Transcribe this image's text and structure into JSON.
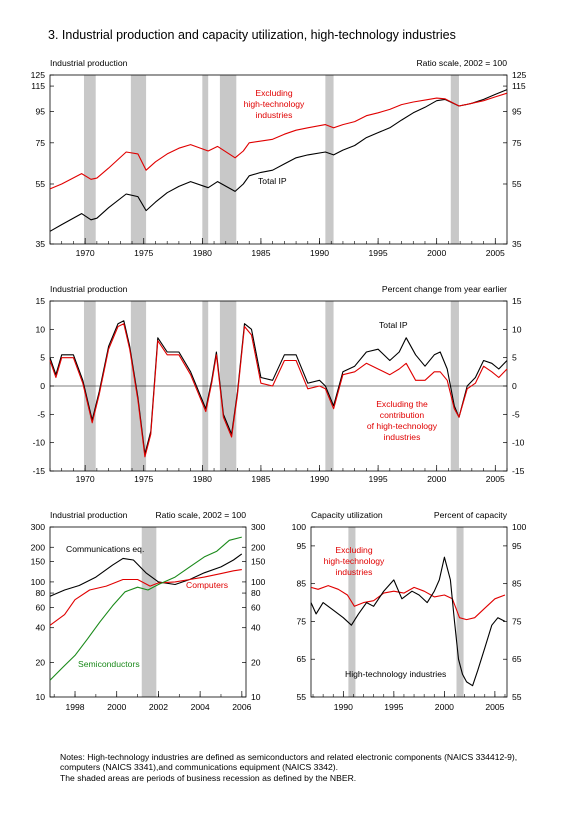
{
  "title": "3.  Industrial production and capacity utilization, high-technology industries",
  "colors": {
    "ip": "#000000",
    "red": "#e00000",
    "green": "#1a8a1a",
    "shade": "#c8c8c8"
  },
  "recessions": [
    [
      1969.9,
      1970.9
    ],
    [
      1973.9,
      1975.2
    ],
    [
      1980.0,
      1980.5
    ],
    [
      1981.5,
      1982.9
    ],
    [
      1990.5,
      1991.2
    ],
    [
      2001.2,
      2001.9
    ]
  ],
  "notes": {
    "line1": "Notes:  High-technology industries are defined as semiconductors and related electronic components (NAICS 334412-9),",
    "line2": "computers (NAICS 3341),and communications equipment (NAICS 3342).",
    "line3": "The shaded areas are periods of business recession as defined by the NBER."
  },
  "chart_data": [
    {
      "type": "line",
      "left_label": "Industrial production",
      "right_label": "Ratio scale, 2002 = 100",
      "scale": "log",
      "xlim": [
        1967,
        2006
      ],
      "ylim": [
        35,
        125
      ],
      "x_ticks": [
        "1970",
        "1975",
        "1980",
        "1985",
        "1990",
        "1995",
        "2000",
        "2005"
      ],
      "y_ticks": [
        "35",
        "55",
        "75",
        "95",
        "115",
        "125"
      ],
      "annotations": {
        "excl_1": "Excluding",
        "excl_2": "high-technology",
        "excl_3": "industries",
        "total": "Total IP"
      },
      "series": [
        {
          "name": "Total IP",
          "color": "ip",
          "x": [
            1967,
            1968,
            1969.7,
            1970.5,
            1971,
            1972,
            1973.5,
            1974.5,
            1975.2,
            1976,
            1977,
            1978,
            1979,
            1980.5,
            1981.3,
            1982.8,
            1983.5,
            1984,
            1985,
            1986,
            1987,
            1988,
            1989,
            1990.5,
            1991.2,
            1992,
            1993,
            1994,
            1995,
            1996,
            1997,
            1998,
            1999,
            2000,
            2000.7,
            2001.9,
            2002.5,
            2003,
            2004,
            2005,
            2006
          ],
          "y": [
            38.5,
            40.5,
            44,
            42,
            42.5,
            46,
            51,
            50,
            45,
            48,
            51.5,
            54,
            56,
            53.5,
            56,
            52,
            55,
            58.5,
            60,
            61,
            64,
            67,
            68.5,
            70,
            68.5,
            71,
            73.5,
            78,
            81,
            84,
            89,
            94,
            98,
            103,
            104,
            99,
            100,
            101,
            104,
            108,
            112
          ]
        },
        {
          "name": "Excluding high-technology industries",
          "color": "red",
          "x": [
            1967,
            1968,
            1969.7,
            1970.5,
            1971,
            1972,
            1973.5,
            1974.5,
            1975.2,
            1976,
            1977,
            1978,
            1979,
            1980.5,
            1981.3,
            1982.8,
            1983.5,
            1984,
            1985,
            1986,
            1987,
            1988,
            1989,
            1990.5,
            1991.2,
            1992,
            1993,
            1994,
            1995,
            1996,
            1997,
            1998,
            1999,
            2000,
            2000.7,
            2001.9,
            2002.5,
            2003,
            2004,
            2005,
            2006
          ],
          "y": [
            53,
            55,
            59.5,
            57,
            57.5,
            62,
            70,
            69,
            61,
            65,
            69,
            72,
            74,
            70.5,
            73,
            67,
            70.5,
            75,
            76,
            77,
            80,
            82.5,
            84,
            86,
            84,
            86,
            88,
            92,
            94,
            96.5,
            100,
            102,
            103.5,
            105,
            104.5,
            99,
            100,
            101,
            103,
            106,
            109
          ]
        }
      ]
    },
    {
      "type": "line",
      "left_label": "Industrial production",
      "right_label": "Percent change from year earlier",
      "xlim": [
        1967,
        2006
      ],
      "ylim": [
        -15,
        15
      ],
      "x_ticks": [
        "1970",
        "1975",
        "1980",
        "1985",
        "1990",
        "1995",
        "2000",
        "2005"
      ],
      "y_ticks": [
        "-15",
        "-10",
        "-5",
        "0",
        "5",
        "10",
        "15"
      ],
      "annotations": {
        "total": "Total IP",
        "excl_1": "Excluding the",
        "excl_2": "contribution",
        "excl_3": "of high-technology",
        "excl_4": "industries"
      },
      "series": [
        {
          "name": "Total IP",
          "color": "ip",
          "x": [
            1967,
            1967.5,
            1968,
            1969,
            1969.8,
            1970.6,
            1971.2,
            1972,
            1972.8,
            1973.3,
            1973.8,
            1974.5,
            1975.1,
            1975.6,
            1976.2,
            1977,
            1978,
            1979,
            1979.6,
            1980.3,
            1980.8,
            1981.2,
            1981.8,
            1982.5,
            1983,
            1983.6,
            1984.2,
            1985,
            1986,
            1987,
            1988,
            1989,
            1990,
            1990.5,
            1991.2,
            1992,
            1993,
            1994,
            1995,
            1996,
            1996.8,
            1997.4,
            1998.2,
            1999,
            1999.8,
            2000.3,
            2000.9,
            2001.5,
            2001.9,
            2002.6,
            2003.3,
            2004,
            2004.7,
            2005.3,
            2006
          ],
          "y": [
            5,
            2,
            5.5,
            5.5,
            1,
            -6,
            -1,
            7,
            11,
            11.5,
            7,
            -2,
            -12,
            -8,
            8.5,
            6,
            6,
            2.5,
            -0.5,
            -4,
            1,
            6,
            -5,
            -8.5,
            -1,
            11,
            10,
            1.5,
            1,
            5.5,
            5.5,
            0.5,
            1,
            0,
            -3.5,
            2.5,
            3.5,
            6,
            6.5,
            4.5,
            6,
            8.5,
            5.5,
            3.5,
            5.5,
            6,
            3,
            -3.5,
            -5.5,
            0,
            1.5,
            4.5,
            4,
            3,
            4.5
          ]
        },
        {
          "name": "Excluding the contribution of high-technology industries",
          "color": "red",
          "x": [
            1967,
            1967.5,
            1968,
            1969,
            1969.8,
            1970.6,
            1971.2,
            1972,
            1972.8,
            1973.3,
            1973.8,
            1974.5,
            1975.1,
            1975.6,
            1976.2,
            1977,
            1978,
            1979,
            1979.6,
            1980.3,
            1980.8,
            1981.2,
            1981.8,
            1982.5,
            1983,
            1983.6,
            1984.2,
            1985,
            1986,
            1987,
            1988,
            1989,
            1990,
            1990.5,
            1991.2,
            1992,
            1993,
            1994,
            1995,
            1996,
            1996.8,
            1997.4,
            1998.2,
            1999,
            1999.8,
            2000.3,
            2000.9,
            2001.5,
            2001.9,
            2002.6,
            2003.3,
            2004,
            2004.7,
            2005.3,
            2006
          ],
          "y": [
            4.5,
            1.5,
            5,
            5,
            0.5,
            -6.5,
            -1.5,
            6.5,
            10.5,
            11,
            6.5,
            -2.5,
            -12.5,
            -8.5,
            8,
            5.5,
            5.5,
            2,
            -1,
            -4.5,
            0.5,
            5.5,
            -5.5,
            -9,
            -1.5,
            10.5,
            9,
            0.5,
            0,
            4.5,
            4.5,
            -0.5,
            0,
            -0.5,
            -4,
            2,
            2.5,
            4,
            3,
            2,
            3,
            4,
            1,
            1,
            2.5,
            2.5,
            1,
            -4,
            -5.5,
            -0.5,
            0.5,
            3.5,
            2.5,
            1.5,
            3
          ]
        }
      ]
    },
    {
      "type": "line",
      "left_label": "Industrial production",
      "right_label": "Ratio scale, 2002 = 100",
      "scale": "log",
      "xlim": [
        1996.8,
        2006.2
      ],
      "ylim": [
        10,
        300
      ],
      "x_ticks": [
        "1998",
        "2000",
        "2002",
        "2004",
        "2006"
      ],
      "y_ticks": [
        "10",
        "20",
        "40",
        "60",
        "80",
        "100",
        "150",
        "200",
        "300"
      ],
      "annotations": {
        "comm": "Communications eq.",
        "comp": "Computers",
        "semi": "Semiconductors"
      },
      "series": [
        {
          "name": "Communications eq.",
          "color": "ip",
          "x": [
            1996.8,
            1997.5,
            1998.2,
            1999,
            1999.8,
            2000.3,
            2000.8,
            2001.4,
            2002,
            2002.8,
            2003.5,
            2004.2,
            2005,
            2005.6,
            2006
          ],
          "y": [
            75,
            85,
            93,
            110,
            140,
            160,
            155,
            120,
            100,
            95,
            105,
            120,
            135,
            155,
            175
          ]
        },
        {
          "name": "Computers",
          "color": "red",
          "x": [
            1996.8,
            1997.5,
            1998,
            1998.7,
            1999.5,
            2000.3,
            2001,
            2001.6,
            2002,
            2002.8,
            2003.5,
            2004.2,
            2005,
            2005.6,
            2006
          ],
          "y": [
            42,
            52,
            70,
            85,
            92,
            105,
            105,
            92,
            98,
            100,
            105,
            110,
            118,
            125,
            128
          ]
        },
        {
          "name": "Semiconductors",
          "color": "green",
          "x": [
            1996.8,
            1997.4,
            1998,
            1998.6,
            1999.2,
            1999.8,
            2000.4,
            2001,
            2001.5,
            2002,
            2002.8,
            2003.5,
            2004.2,
            2004.8,
            2005.4,
            2006
          ],
          "y": [
            14,
            18,
            23,
            32,
            45,
            62,
            82,
            90,
            85,
            95,
            110,
            135,
            165,
            185,
            230,
            245
          ]
        }
      ]
    },
    {
      "type": "line",
      "left_label": "Capacity utilization",
      "right_label": "Percent of capacity",
      "xlim": [
        1986.8,
        2006.2
      ],
      "ylim": [
        55,
        100
      ],
      "x_ticks": [
        "1990",
        "1995",
        "2000",
        "2005"
      ],
      "y_ticks": [
        "55",
        "65",
        "75",
        "85",
        "95",
        "100"
      ],
      "annotations": {
        "excl_1": "Excluding",
        "excl_2": "high-technology",
        "excl_3": "industries",
        "hi": "High-technology industries"
      },
      "series": [
        {
          "name": "Excluding high-technology industries",
          "color": "red",
          "x": [
            1986.8,
            1987.5,
            1988.5,
            1989.5,
            1990.4,
            1991.1,
            1992,
            1993,
            1994,
            1995,
            1996,
            1997,
            1998,
            1999,
            2000,
            2000.8,
            2001.5,
            2002.2,
            2003,
            2004,
            2005,
            2006
          ],
          "y": [
            84,
            83.5,
            84.5,
            83.5,
            82,
            79,
            80,
            80.5,
            82.5,
            83,
            82.5,
            84,
            83,
            81.5,
            82,
            81,
            76,
            75.5,
            76,
            78.5,
            81,
            82
          ]
        },
        {
          "name": "High-technology industries",
          "color": "ip",
          "x": [
            1986.8,
            1987.3,
            1988,
            1989,
            1990,
            1990.8,
            1991.5,
            1992.3,
            1993,
            1994,
            1995,
            1995.8,
            1996.8,
            1997.5,
            1998.3,
            1999,
            1999.5,
            2000,
            2000.6,
            2001,
            2001.4,
            2001.8,
            2002.2,
            2002.8,
            2003.3,
            2004,
            2004.7,
            2005.3,
            2006
          ],
          "y": [
            80,
            77,
            80,
            78,
            76,
            74,
            77,
            80,
            79,
            83,
            86,
            81,
            83,
            82,
            80,
            83,
            86,
            92,
            86,
            75,
            65,
            61,
            59,
            58,
            62,
            68,
            74,
            76,
            75
          ]
        }
      ]
    }
  ]
}
